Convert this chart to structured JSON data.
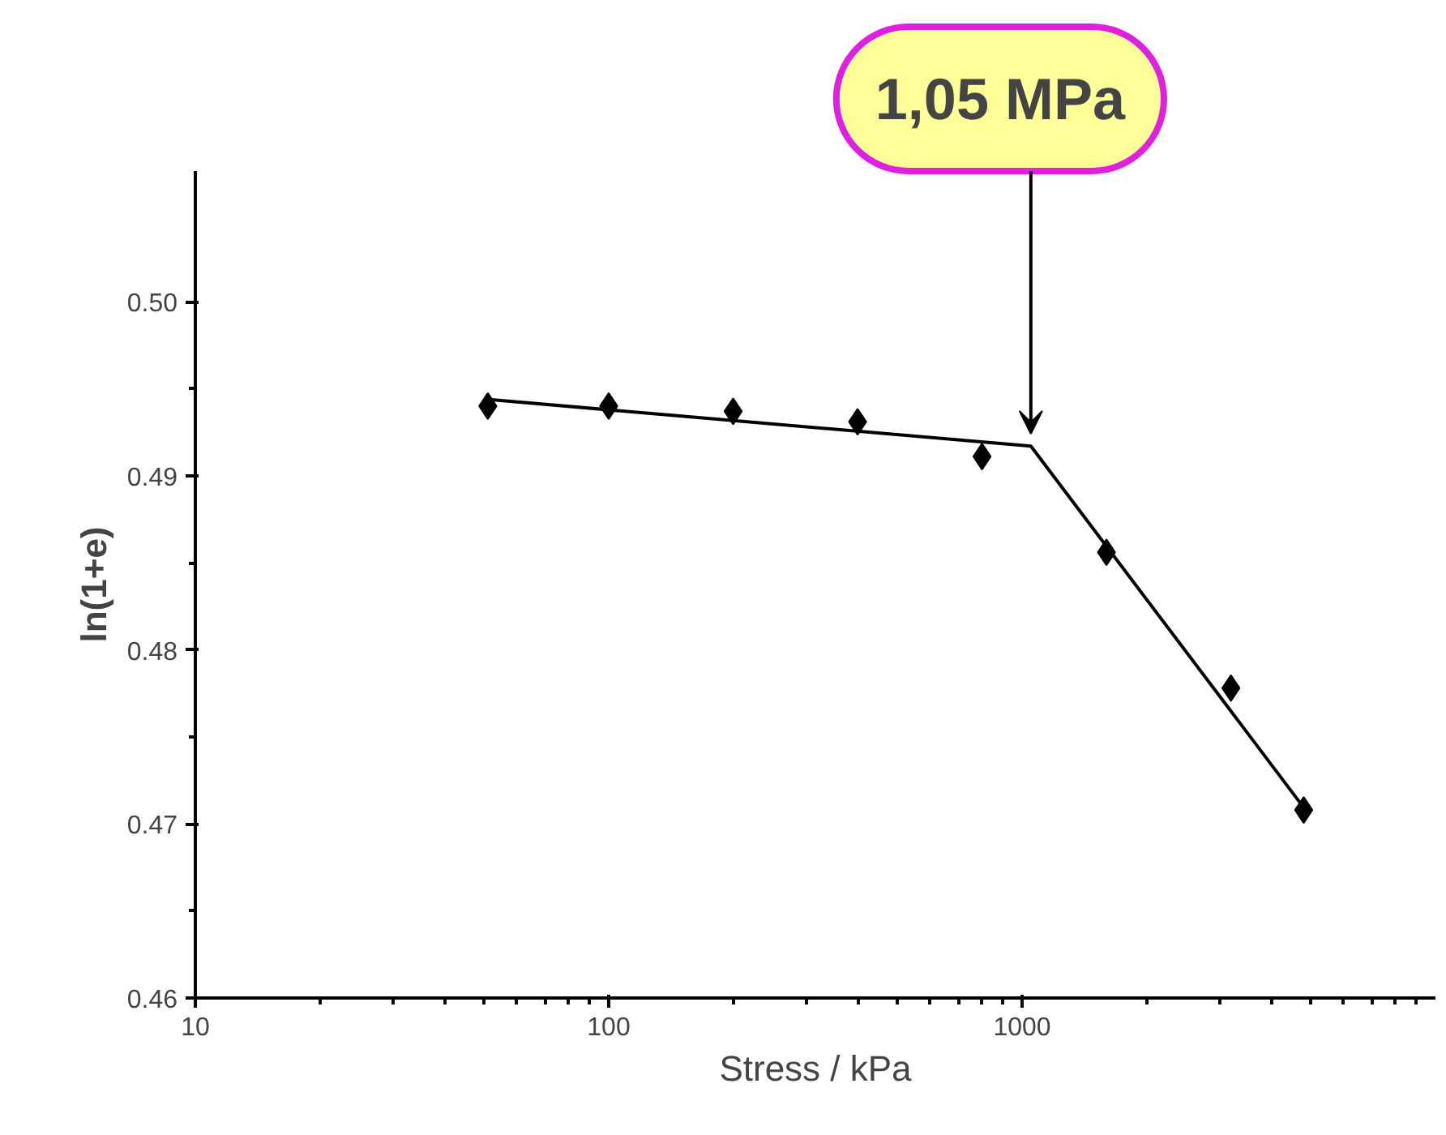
{
  "chart_data": {
    "type": "scatter",
    "xlabel": "Stress / kPa",
    "ylabel": "ln(1+e)",
    "log": "x",
    "xlim": [
      10,
      10000
    ],
    "ylim": [
      0.46,
      0.5075
    ],
    "xticks": [
      10,
      100,
      1000
    ],
    "yticks": [
      0.46,
      0.47,
      0.48,
      0.49,
      {
        "value": 0.5,
        "label": "0.50"
      }
    ],
    "grid": false,
    "marker": "diamond",
    "x": [
      51,
      100,
      200,
      400,
      800,
      1600,
      3200,
      4800
    ],
    "series": [
      {
        "color": "#000000",
        "values": [
          0.494,
          0.494,
          0.4937,
          0.4931,
          0.4911,
          0.4856,
          0.4778,
          0.4708
        ]
      },
      {
        "type": "line",
        "marker": "none",
        "color": "#000000",
        "x": [
          50,
          1050,
          4850
        ],
        "values": [
          0.4944,
          0.4917,
          0.4708
        ]
      }
    ],
    "annotations": [
      {
        "text": "1,05 MPa",
        "x": 1050,
        "y": 0.4917
      }
    ]
  }
}
